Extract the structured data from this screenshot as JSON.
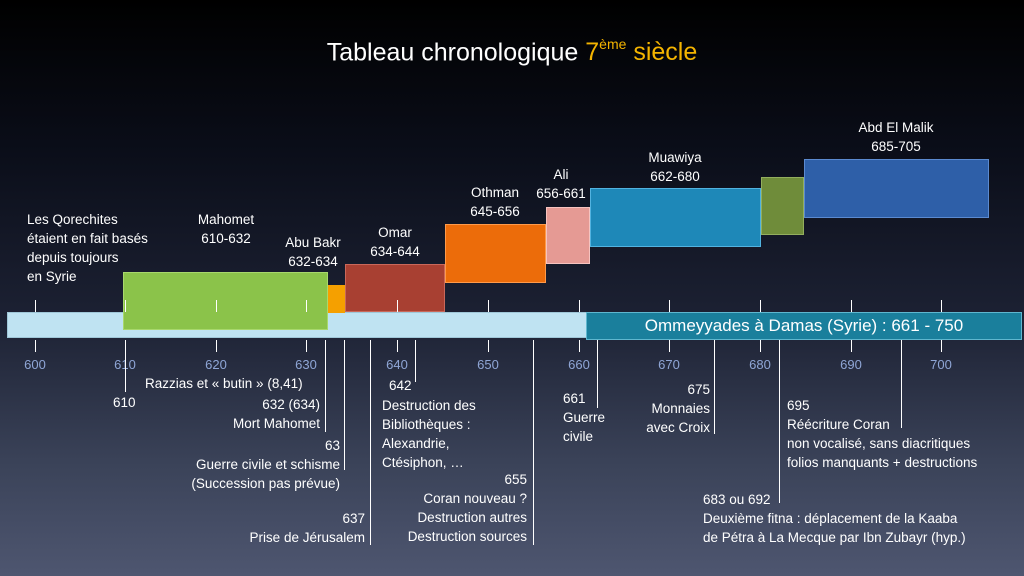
{
  "title": {
    "main": "Tableau chronologique ",
    "accent_num": "7",
    "accent_sup": "ème",
    "accent_word": " siècle"
  },
  "colors": {
    "accent": "#f4b400",
    "mahomet": "#8bc34a",
    "abubakr": "#f5a000",
    "omar": "#a84032",
    "othman": "#ec6c0a",
    "ali": "#e59a94",
    "muawiya": "#1e88b8",
    "abdelmalik_green": "#6f8c3a",
    "abdelmalik": "#2e5fa8",
    "axis_light": "#bfe3f2",
    "omeyyades": "#1a7f9c",
    "year_labels": "#8fa6d6"
  },
  "rulers": [
    {
      "name": "Mahomet",
      "years": "610-632"
    },
    {
      "name": "Abu Bakr",
      "years": "632-634"
    },
    {
      "name": "Omar",
      "years": "634-644"
    },
    {
      "name": "Othman",
      "years": "645-656"
    },
    {
      "name": "Ali",
      "years": "656-661"
    },
    {
      "name": "Muawiya",
      "years": "662-680"
    },
    {
      "name": "Abd El Malik",
      "years": "685-705"
    }
  ],
  "qorechites_note": "Les Qorechites\nétaient en fait basés\ndepuis toujours\nen Syrie",
  "omeyyades_label": "Ommeyyades à Damas (Syrie) : 661 - 750",
  "axis_years": [
    "600",
    "610",
    "620",
    "630",
    "640",
    "650",
    "660",
    "670",
    "680",
    "690",
    "700"
  ],
  "events": {
    "e610": {
      "a": "Razzias et « butin » (8,41)",
      "b": "610"
    },
    "e632": "632 (634)\nMort Mahomet",
    "e63": "63\nGuerre civile et schisme\n(Succession pas prévue)",
    "e637": "637\nPrise de Jérusalem",
    "e642": "642",
    "e642_text": "Destruction des\nBibliothèques :\nAlexandrie,\nCtésiphon, …",
    "e655": "655\nCoran nouveau ?\nDestruction autres\nDestruction sources",
    "e661": "661\nGuerre\ncivile",
    "e675": "675\nMonnaies\navec Croix",
    "e683": "683 ou 692\nDeuxième fitna : déplacement de la Kaaba\nde Pétra à La Mecque par Ibn Zubayr (hyp.)",
    "e695": "695\nRéécriture Coran\nnon vocalisé, sans diacritiques\nfolios manquants + destructions"
  }
}
